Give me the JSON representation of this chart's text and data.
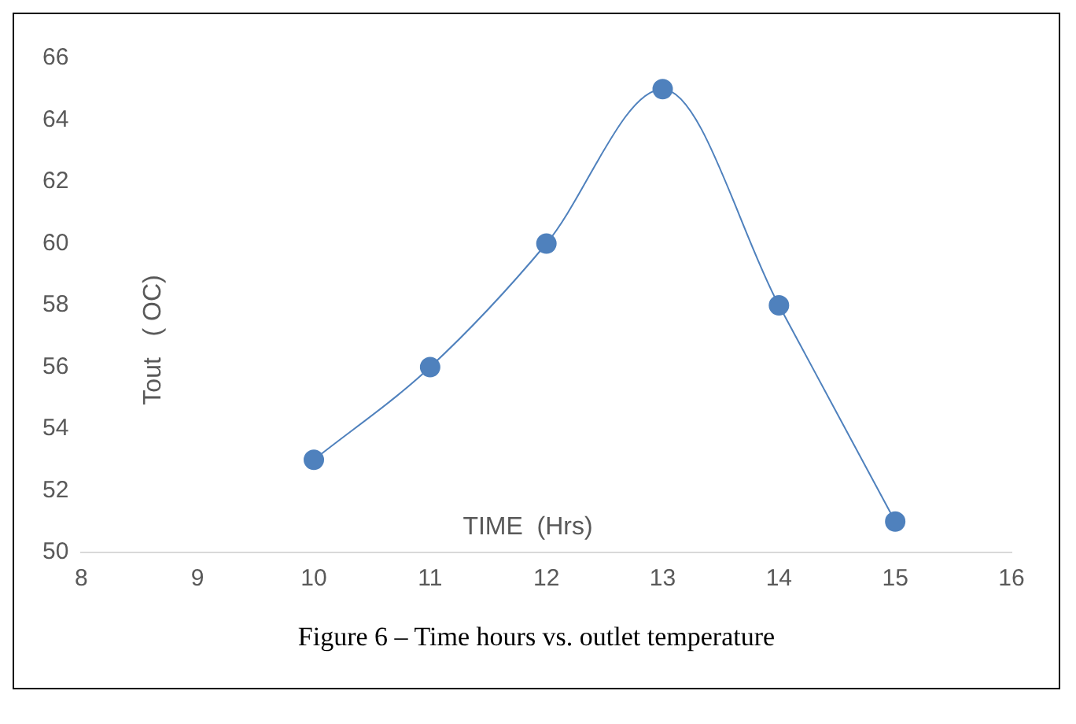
{
  "chart_data": {
    "type": "line",
    "xlabel": "TIME  (Hrs)",
    "ylabel": "Tout   ( OC)",
    "x": [
      10,
      11,
      12,
      13,
      14,
      15
    ],
    "series": [
      {
        "color": "#4f81bd",
        "values": [
          53,
          56,
          60,
          65,
          58,
          51
        ]
      }
    ],
    "xlim": [
      8,
      16
    ],
    "xticks": [
      8,
      9,
      10,
      11,
      12,
      13,
      14,
      15,
      16
    ],
    "ylim": [
      50,
      66
    ],
    "yticks": [
      50,
      52,
      54,
      56,
      58,
      60,
      62,
      64,
      66
    ],
    "marker": "circle",
    "line_style": "solid",
    "annotations": [
      "Figure 6 – Time hours vs. outlet temperature"
    ]
  }
}
